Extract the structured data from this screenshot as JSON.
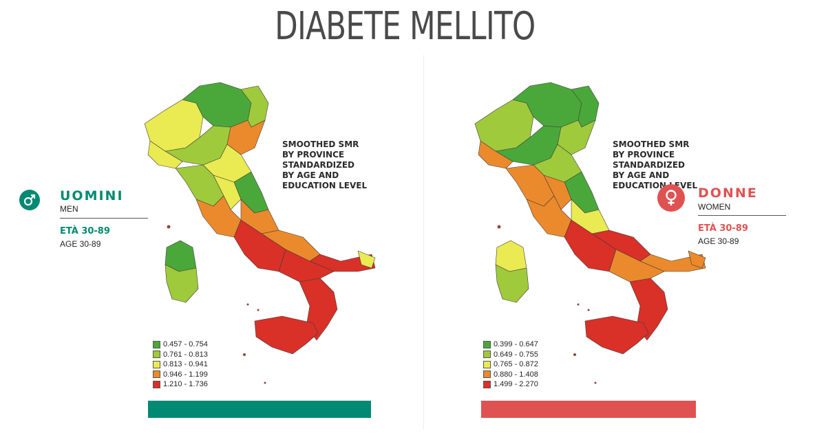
{
  "title": "DIABETE MELLITO",
  "men": {
    "icon": "male-symbol-icon",
    "color": "#008a73",
    "label_it": "UOMINI",
    "label_en": "MEN",
    "age_it": "ETÀ 30-89",
    "age_en": "AGE 30-89",
    "note": "SMOOTHED SMR\nBY PROVINCE\nSTANDARDIZED\nBY AGE AND\nEDUCATION LEVEL",
    "legend": [
      {
        "range": "0.457 - 0.754",
        "color": "#4aa83a"
      },
      {
        "range": "0.761 - 0.813",
        "color": "#9fca3c"
      },
      {
        "range": "0.813 - 0.941",
        "color": "#eaea52"
      },
      {
        "range": "0.946 - 1.199",
        "color": "#eb8a2c"
      },
      {
        "range": "1.210 - 1.736",
        "color": "#d93028"
      }
    ]
  },
  "women": {
    "icon": "female-symbol-icon",
    "color": "#e05252",
    "label_it": "DONNE",
    "label_en": "WOMEN",
    "age_it": "ETÀ 30-89",
    "age_en": "AGE 30-89",
    "note": "SMOOTHED SMR\nBY PROVINCE\nSTANDARDIZED\nBY AGE AND\nEDUCATION LEVEL",
    "legend": [
      {
        "range": "0.399 - 0.647",
        "color": "#4aa83a"
      },
      {
        "range": "0.649 - 0.755",
        "color": "#9fca3c"
      },
      {
        "range": "0.765 - 0.872",
        "color": "#eaea52"
      },
      {
        "range": "0.880 - 1.408",
        "color": "#eb8a2c"
      },
      {
        "range": "1.499 - 2.270",
        "color": "#d93028"
      }
    ]
  }
}
